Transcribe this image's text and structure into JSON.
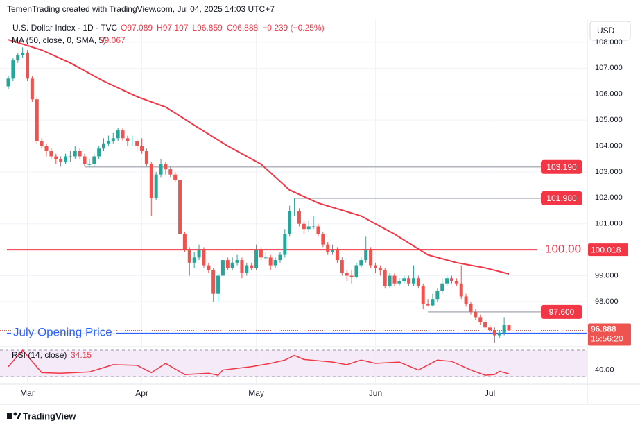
{
  "header": "TemenTrading created with TradingView.com, Jul 04, 2025 14:03 UTC+7",
  "footer": "TradingView",
  "currency_button": "USD",
  "chart_data": {
    "type": "candlestick",
    "symbol": "U.S. Dollar Index · 1D · TVC",
    "legend_ohlc": [
      "O97.089",
      "H97.107",
      "L96.859",
      "C96.888",
      "−0.239 (−0.25%)"
    ],
    "up_color": "#26a69a",
    "down_color": "#ef5350",
    "ylim": [
      96.34,
      108.88
    ],
    "yticks": [
      {
        "value": 98,
        "label": "98.000"
      },
      {
        "value": 99,
        "label": "99.000"
      },
      {
        "value": 100,
        "label": "100.000"
      },
      {
        "value": 101,
        "label": "101.000"
      },
      {
        "value": 102,
        "label": "102.000"
      },
      {
        "value": 103,
        "label": "103.000"
      },
      {
        "value": 104,
        "label": "104.000"
      },
      {
        "value": 105,
        "label": "105.000"
      },
      {
        "value": 106,
        "label": "106.000"
      },
      {
        "value": 107,
        "label": "107.000"
      },
      {
        "value": 108,
        "label": "108.000"
      }
    ],
    "xticks": [
      {
        "value": 4,
        "label": "Mar"
      },
      {
        "value": 28,
        "label": "Apr"
      },
      {
        "value": 52,
        "label": "May"
      },
      {
        "value": 77,
        "label": "Jun"
      },
      {
        "value": 101,
        "label": "Jul"
      }
    ],
    "candles": [
      [
        106.3,
        106.7,
        106.2,
        106.6
      ],
      [
        106.6,
        107.4,
        106.5,
        107.3
      ],
      [
        107.3,
        107.6,
        107.2,
        107.5
      ],
      [
        107.5,
        107.8,
        107.4,
        107.6
      ],
      [
        107.6,
        107.7,
        106.5,
        106.6
      ],
      [
        106.6,
        106.7,
        105.7,
        105.8
      ],
      [
        105.8,
        105.9,
        104.1,
        104.2
      ],
      [
        104.2,
        104.3,
        103.9,
        104.0
      ],
      [
        104.0,
        104.1,
        103.6,
        103.8
      ],
      [
        103.8,
        103.9,
        103.5,
        103.6
      ],
      [
        103.6,
        103.7,
        103.3,
        103.5
      ],
      [
        103.5,
        103.6,
        103.2,
        103.4
      ],
      [
        103.4,
        103.7,
        103.3,
        103.6
      ],
      [
        103.6,
        103.8,
        103.4,
        103.6
      ],
      [
        103.6,
        104.0,
        103.5,
        103.8
      ],
      [
        103.8,
        103.9,
        103.5,
        103.6
      ],
      [
        103.6,
        103.7,
        103.2,
        103.3
      ],
      [
        103.3,
        103.5,
        103.2,
        103.3
      ],
      [
        103.3,
        103.7,
        103.2,
        103.6
      ],
      [
        103.6,
        104.0,
        103.5,
        103.9
      ],
      [
        103.9,
        104.3,
        103.8,
        104.1
      ],
      [
        104.1,
        104.4,
        104.0,
        104.2
      ],
      [
        104.2,
        104.5,
        104.1,
        104.3
      ],
      [
        104.3,
        104.7,
        104.2,
        104.6
      ],
      [
        104.6,
        104.7,
        104.2,
        104.3
      ],
      [
        104.3,
        104.4,
        104.0,
        104.2
      ],
      [
        104.2,
        104.4,
        104.0,
        104.2
      ],
      [
        104.2,
        104.3,
        103.8,
        104.0
      ],
      [
        104.0,
        104.3,
        103.7,
        103.8
      ],
      [
        103.8,
        103.9,
        103.2,
        103.3
      ],
      [
        103.3,
        103.4,
        101.3,
        102.0
      ],
      [
        102.0,
        103.0,
        101.9,
        102.9
      ],
      [
        102.9,
        103.5,
        102.8,
        103.3
      ],
      [
        103.3,
        103.4,
        102.9,
        103.1
      ],
      [
        103.1,
        103.2,
        102.8,
        102.9
      ],
      [
        102.9,
        103.0,
        102.6,
        102.7
      ],
      [
        102.7,
        102.8,
        100.5,
        100.6
      ],
      [
        100.6,
        100.7,
        99.9,
        100.0
      ],
      [
        100.0,
        100.1,
        99.0,
        99.5
      ],
      [
        99.5,
        99.9,
        99.3,
        99.7
      ],
      [
        99.7,
        100.2,
        99.6,
        100.0
      ],
      [
        100.0,
        100.1,
        99.3,
        99.4
      ],
      [
        99.4,
        99.5,
        99.1,
        99.2
      ],
      [
        99.2,
        99.3,
        98.0,
        98.3
      ],
      [
        98.3,
        99.1,
        98.0,
        99.0
      ],
      [
        99.0,
        99.8,
        98.9,
        99.6
      ],
      [
        99.6,
        99.7,
        99.2,
        99.3
      ],
      [
        99.3,
        99.7,
        99.2,
        99.5
      ],
      [
        99.5,
        99.8,
        99.4,
        99.6
      ],
      [
        99.6,
        99.7,
        98.9,
        99.1
      ],
      [
        99.1,
        99.5,
        99.0,
        99.4
      ],
      [
        99.4,
        99.5,
        99.2,
        99.3
      ],
      [
        99.3,
        100.2,
        99.2,
        100.0
      ],
      [
        100.0,
        100.1,
        99.6,
        99.7
      ],
      [
        99.7,
        99.9,
        99.6,
        99.7
      ],
      [
        99.7,
        99.8,
        99.2,
        99.4
      ],
      [
        99.4,
        99.7,
        99.3,
        99.6
      ],
      [
        99.6,
        99.9,
        99.5,
        99.8
      ],
      [
        99.8,
        100.8,
        99.7,
        100.6
      ],
      [
        100.6,
        101.7,
        100.5,
        101.5
      ],
      [
        101.5,
        102.0,
        101.3,
        101.5
      ],
      [
        101.5,
        101.6,
        100.9,
        101.0
      ],
      [
        101.0,
        101.1,
        100.6,
        100.8
      ],
      [
        100.8,
        101.1,
        100.7,
        100.9
      ],
      [
        100.9,
        101.3,
        100.8,
        100.9
      ],
      [
        100.9,
        101.0,
        100.5,
        100.6
      ],
      [
        100.6,
        100.7,
        100.1,
        100.2
      ],
      [
        100.2,
        100.3,
        99.8,
        99.9
      ],
      [
        99.9,
        100.2,
        99.8,
        100.0
      ],
      [
        100.0,
        100.1,
        99.5,
        99.6
      ],
      [
        99.6,
        99.7,
        99.0,
        99.1
      ],
      [
        99.1,
        99.2,
        98.8,
        99.0
      ],
      [
        99.0,
        99.2,
        98.7,
        98.95
      ],
      [
        98.95,
        99.5,
        98.9,
        99.4
      ],
      [
        99.4,
        99.7,
        99.3,
        99.6
      ],
      [
        99.6,
        100.5,
        99.5,
        100.0
      ],
      [
        100.0,
        100.1,
        99.3,
        99.4
      ],
      [
        99.4,
        99.5,
        99.1,
        99.3
      ],
      [
        99.3,
        99.4,
        99.0,
        99.2
      ],
      [
        99.2,
        99.3,
        98.5,
        98.6
      ],
      [
        98.6,
        99.1,
        98.5,
        99.0
      ],
      [
        99.0,
        99.1,
        98.6,
        98.7
      ],
      [
        98.7,
        98.9,
        98.6,
        98.8
      ],
      [
        98.8,
        99.0,
        98.7,
        98.9
      ],
      [
        98.9,
        99.0,
        98.6,
        98.7
      ],
      [
        98.7,
        99.4,
        98.6,
        98.9
      ],
      [
        98.9,
        99.0,
        98.5,
        98.6
      ],
      [
        98.6,
        98.7,
        97.7,
        97.9
      ],
      [
        97.9,
        98.1,
        97.8,
        97.85
      ],
      [
        97.85,
        98.3,
        97.8,
        98.1
      ],
      [
        98.1,
        98.5,
        98.0,
        98.4
      ],
      [
        98.4,
        98.9,
        98.3,
        98.7
      ],
      [
        98.7,
        99.0,
        98.6,
        98.9
      ],
      [
        98.9,
        99.0,
        98.7,
        98.8
      ],
      [
        98.8,
        98.9,
        98.6,
        98.7
      ],
      [
        98.7,
        99.4,
        98.1,
        98.2
      ],
      [
        98.2,
        98.3,
        97.8,
        97.9
      ],
      [
        97.9,
        98.0,
        97.5,
        97.6
      ],
      [
        97.6,
        97.7,
        97.3,
        97.4
      ],
      [
        97.4,
        97.5,
        97.1,
        97.2
      ],
      [
        97.2,
        97.3,
        96.9,
        97.0
      ],
      [
        97.0,
        97.1,
        96.8,
        96.9
      ],
      [
        96.9,
        97.0,
        96.4,
        96.7
      ],
      [
        96.7,
        96.9,
        96.6,
        96.8
      ],
      [
        96.8,
        97.4,
        96.7,
        97.1
      ],
      [
        97.089,
        97.107,
        96.859,
        96.888
      ]
    ],
    "ma": {
      "name": "MA (50, close, 0, SMA, 5)",
      "last_label": "99.067",
      "color": "#f23645",
      "x": [
        0,
        7,
        13,
        20,
        27,
        33,
        39,
        46,
        53,
        59,
        65,
        74,
        81,
        88,
        94,
        100,
        105
      ],
      "values": [
        108.1,
        107.7,
        107.2,
        106.5,
        105.9,
        105.5,
        104.8,
        104.0,
        103.3,
        102.3,
        101.8,
        101.3,
        100.6,
        99.8,
        99.5,
        99.3,
        99.067
      ]
    },
    "levels": [
      {
        "value": 103.19,
        "label": "103.190",
        "color": "#b2b5be"
      },
      {
        "value": 101.98,
        "label": "101.980",
        "color": "#b2b5be"
      },
      {
        "value": 97.6,
        "label": "97.600",
        "color": "#b2b5be"
      }
    ],
    "red_line": {
      "value": 100,
      "label": "100.00",
      "axis_label": "100.018",
      "color": "#f23645"
    },
    "opening_line": {
      "value": 96.77,
      "label": "July Opening Price",
      "color": "#2962ff"
    },
    "last_price": {
      "value": 96.888,
      "label": "96.888",
      "countdown": "15:56:20"
    },
    "rsi": {
      "name": "RSI (14, close)",
      "last_label": "34.15",
      "color": "#f23645",
      "ylim": [
        19.5,
        75.3
      ],
      "bands": [
        70,
        30
      ],
      "yticks": [
        {
          "value": 40,
          "label": "40.00"
        }
      ],
      "x": [
        0,
        3,
        7,
        11,
        17,
        22,
        27,
        30,
        33,
        37,
        42,
        44,
        45,
        51,
        55,
        58,
        60,
        62,
        68,
        71,
        74,
        77,
        82,
        86,
        90,
        93,
        97,
        100,
        102,
        103,
        105
      ],
      "values": [
        45,
        70,
        36,
        35,
        37,
        48,
        47,
        36,
        50,
        33,
        35,
        32,
        40,
        45,
        50,
        55,
        62,
        56,
        52,
        48,
        55,
        50,
        52,
        40,
        55,
        53,
        40,
        32,
        33,
        38,
        34.15
      ]
    }
  }
}
